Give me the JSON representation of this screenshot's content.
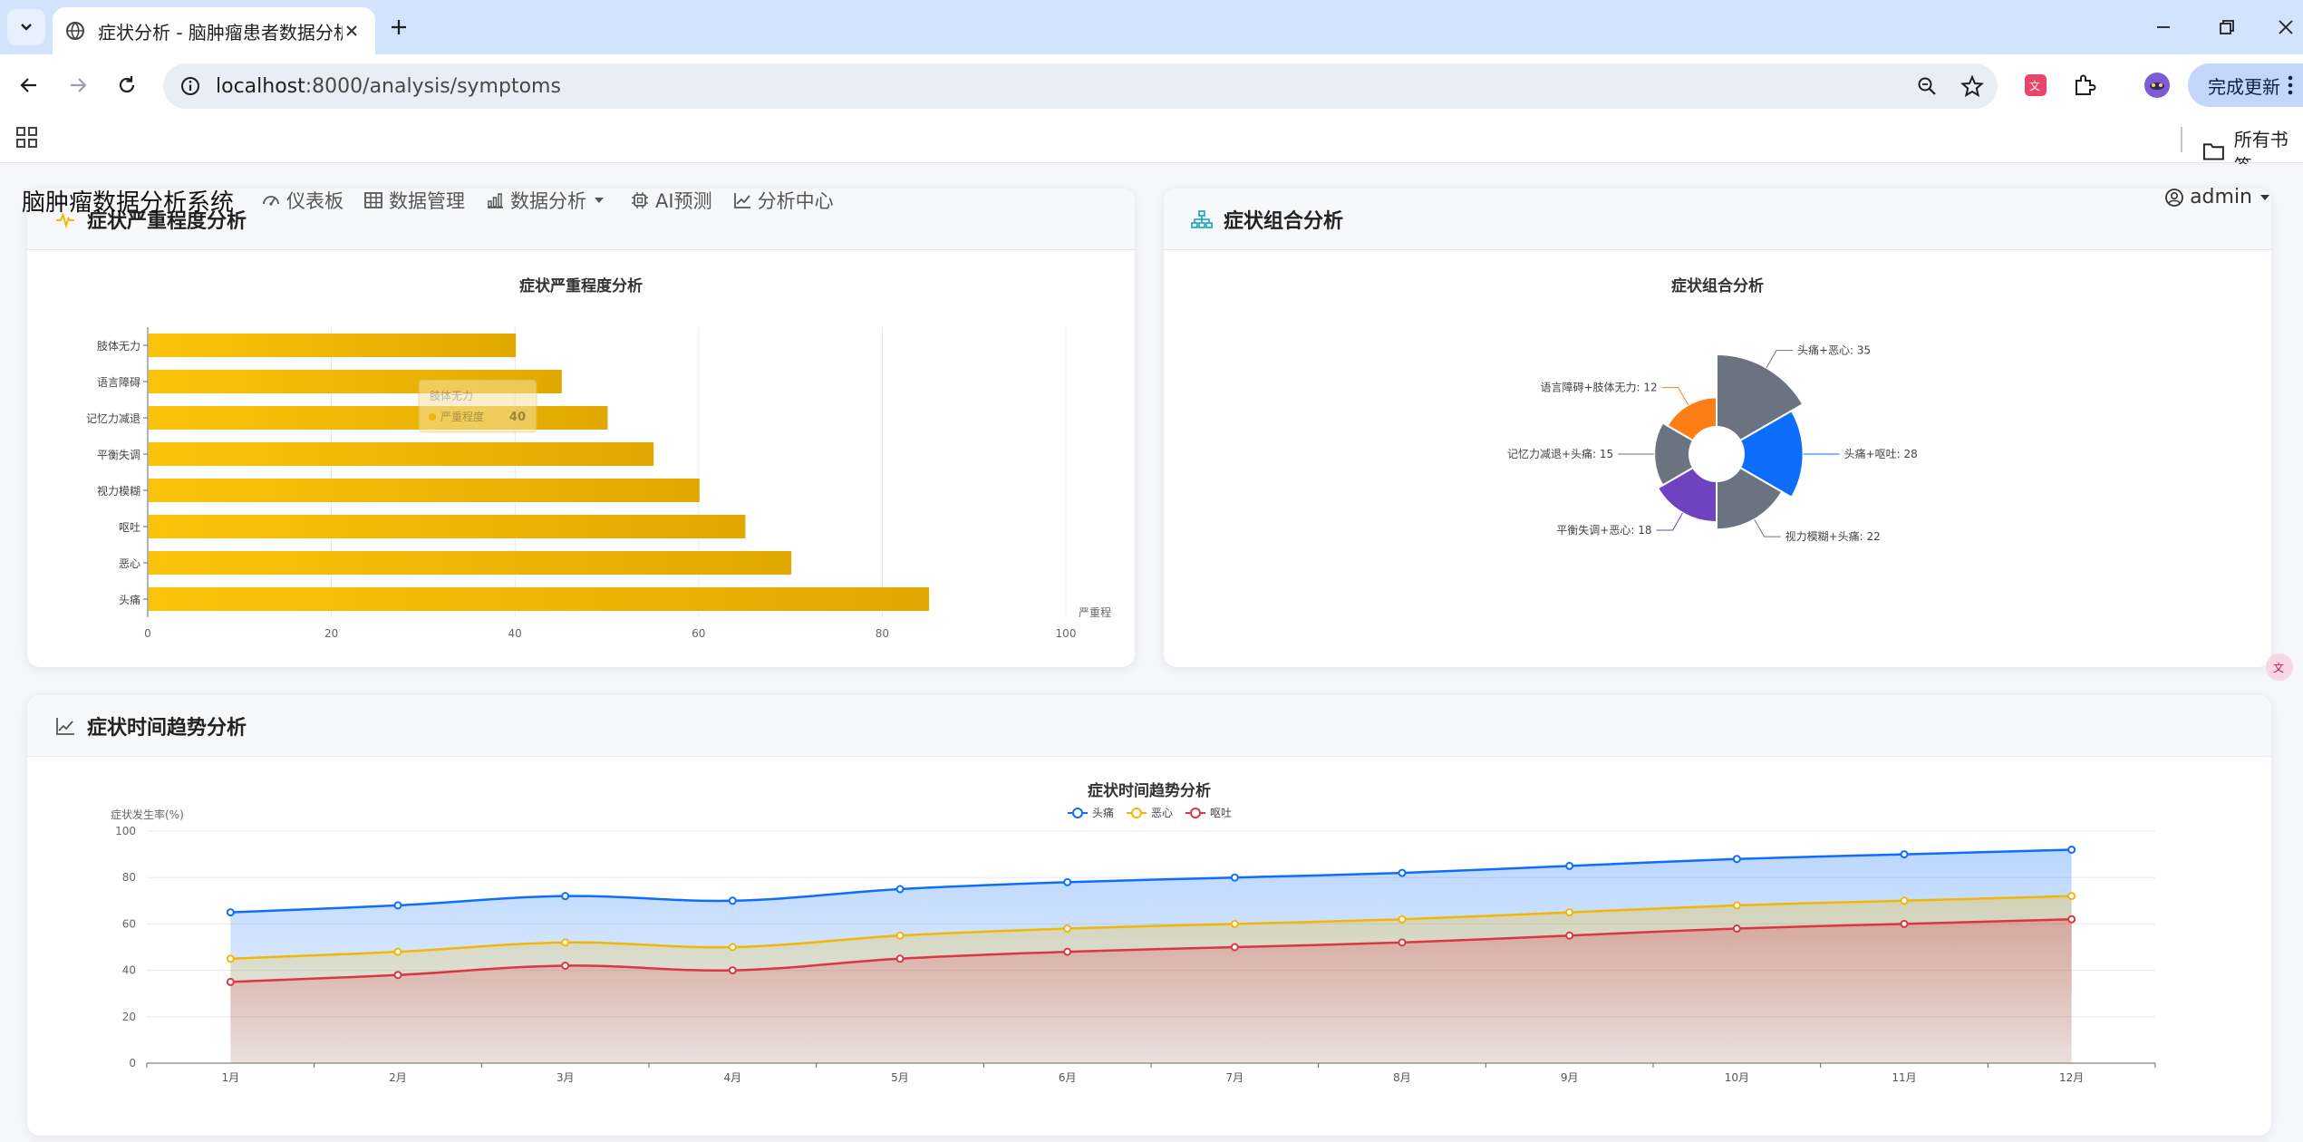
{
  "browser": {
    "tab_title": "症状分析 - 脑肿瘤患者数据分析",
    "url_host": "localhost",
    "url_rest": ":8000/analysis/symptoms",
    "update_label": "完成更新",
    "all_bookmarks": "所有书签"
  },
  "app": {
    "brand": "脑肿瘤数据分析系统",
    "nav": [
      {
        "label": "仪表板",
        "icon": "gauge-icon"
      },
      {
        "label": "数据管理",
        "icon": "table-icon"
      },
      {
        "label": "数据分析",
        "icon": "bar-chart-icon"
      },
      {
        "label": "AI预测",
        "icon": "chip-icon"
      },
      {
        "label": "分析中心",
        "icon": "line-chart-icon"
      }
    ],
    "user": "admin"
  },
  "cards": {
    "severity_title": "症状严重程度分析",
    "combo_title": "症状组合分析",
    "trend_title": "症状时间趋势分析"
  },
  "chart_data": [
    {
      "type": "bar",
      "orientation": "horizontal",
      "title": "症状严重程度分析",
      "categories": [
        "头痛",
        "恶心",
        "呕吐",
        "视力模糊",
        "平衡失调",
        "记忆力减退",
        "语言障碍",
        "肢体无力"
      ],
      "values": [
        85,
        70,
        65,
        60,
        55,
        50,
        45,
        40
      ],
      "xlim": [
        0,
        100
      ],
      "xticks": [
        0,
        20,
        40,
        60,
        80,
        100
      ],
      "xlabel": "严重程",
      "color": "#f2b705",
      "grid": true,
      "tooltip": {
        "category": "肢体无力",
        "series": "严重程度",
        "value": 40
      }
    },
    {
      "type": "pie",
      "variant": "rose",
      "title": "症状组合分析",
      "slices": [
        {
          "label": "头痛+恶心",
          "value": 35,
          "color": "#6b7280"
        },
        {
          "label": "头痛+呕吐",
          "value": 28,
          "color": "#0d6efd"
        },
        {
          "label": "视力模糊+头痛",
          "value": 22,
          "color": "#6b7280"
        },
        {
          "label": "平衡失调+恶心",
          "value": 18,
          "color": "#6f42c1"
        },
        {
          "label": "记忆力减退+头痛",
          "value": 15,
          "color": "#6b7280"
        },
        {
          "label": "语言障碍+肢体无力",
          "value": 12,
          "color": "#fd7e14"
        }
      ]
    },
    {
      "type": "line",
      "area": true,
      "title": "症状时间趋势分析",
      "ylabel": "症状发生率(%)",
      "ylim": [
        0,
        100
      ],
      "yticks": [
        0,
        20,
        40,
        60,
        80,
        100
      ],
      "categories": [
        "1月",
        "2月",
        "3月",
        "4月",
        "5月",
        "6月",
        "7月",
        "8月",
        "9月",
        "10月",
        "11月",
        "12月"
      ],
      "legend_position": "top-center",
      "series": [
        {
          "name": "头痛",
          "color": "#0d6efd",
          "values": [
            65,
            68,
            72,
            70,
            75,
            78,
            80,
            82,
            85,
            88,
            90,
            92
          ]
        },
        {
          "name": "恶心",
          "color": "#f2b705",
          "values": [
            45,
            48,
            52,
            50,
            55,
            58,
            60,
            62,
            65,
            68,
            70,
            72
          ]
        },
        {
          "name": "呕吐",
          "color": "#dc3545",
          "values": [
            35,
            38,
            42,
            40,
            45,
            48,
            50,
            52,
            55,
            58,
            60,
            62
          ]
        }
      ]
    }
  ]
}
